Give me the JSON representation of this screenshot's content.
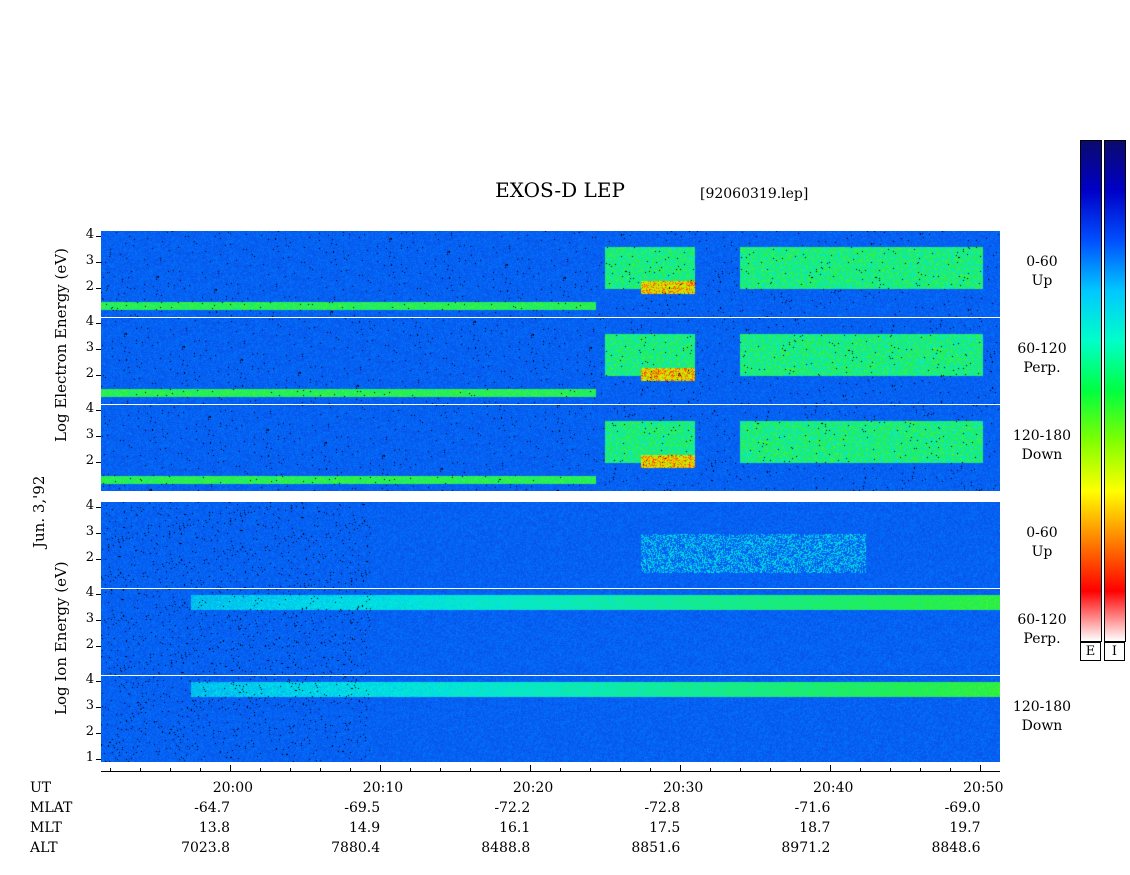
{
  "header": {
    "title": "EXOS-D LEP",
    "filename": "[92060319.lep]"
  },
  "left_labels": {
    "date": "Jun. 3,'92",
    "electron_axis": "Log  Electron  Energy (eV)",
    "ion_axis": "Log  Ion  Energy  (eV)"
  },
  "colorbar": {
    "electron_label": "E",
    "ion_label": "I",
    "colors": [
      "#0a0a6e",
      "#0000c8",
      "#0050ff",
      "#00c8ff",
      "#00ffc8",
      "#00ff40",
      "#80ff00",
      "#ffff00",
      "#ff8000",
      "#ff0000",
      "#ffffff"
    ]
  },
  "chart_data": {
    "type": "heatmap",
    "title": "EXOS-D LEP",
    "ylabel_electron": "Log Electron Energy (eV)",
    "ylabel_ion": "Log Ion Energy (eV)",
    "panels": [
      {
        "species": "Electron",
        "pitch_range": "0-60",
        "direction": "Up",
        "yticks": [
          "4",
          "3",
          "2"
        ]
      },
      {
        "species": "Electron",
        "pitch_range": "60-120",
        "direction": "Perp.",
        "yticks": [
          "4",
          "3",
          "2"
        ]
      },
      {
        "species": "Electron",
        "pitch_range": "120-180",
        "direction": "Down",
        "yticks": [
          "4",
          "3",
          "2"
        ]
      },
      {
        "species": "Ion",
        "pitch_range": "0-60",
        "direction": "Up",
        "yticks": [
          "4",
          "3",
          "2"
        ]
      },
      {
        "species": "Ion",
        "pitch_range": "60-120",
        "direction": "Perp.",
        "yticks": [
          "4",
          "3",
          "2"
        ]
      },
      {
        "species": "Ion",
        "pitch_range": "120-180",
        "direction": "Down",
        "yticks": [
          "4",
          "3",
          "2",
          "1"
        ]
      }
    ],
    "x_axis_rows": [
      {
        "label": "UT",
        "values": [
          "20:00",
          "20:10",
          "20:20",
          "20:30",
          "20:40",
          "20:50"
        ]
      },
      {
        "label": "MLAT",
        "values": [
          "-64.7",
          "-69.5",
          "-72.2",
          "-72.8",
          "-71.6",
          "-69.0"
        ]
      },
      {
        "label": "MLT",
        "values": [
          "13.8",
          "14.9",
          "16.1",
          "17.5",
          "18.7",
          "19.7"
        ]
      },
      {
        "label": "ALT",
        "values": [
          "7023.8",
          "7880.4",
          "8488.8",
          "8851.6",
          "8971.2",
          "8848.6"
        ]
      }
    ],
    "xlim_minutes_after_1950": [
      1.4,
      61.3
    ]
  }
}
